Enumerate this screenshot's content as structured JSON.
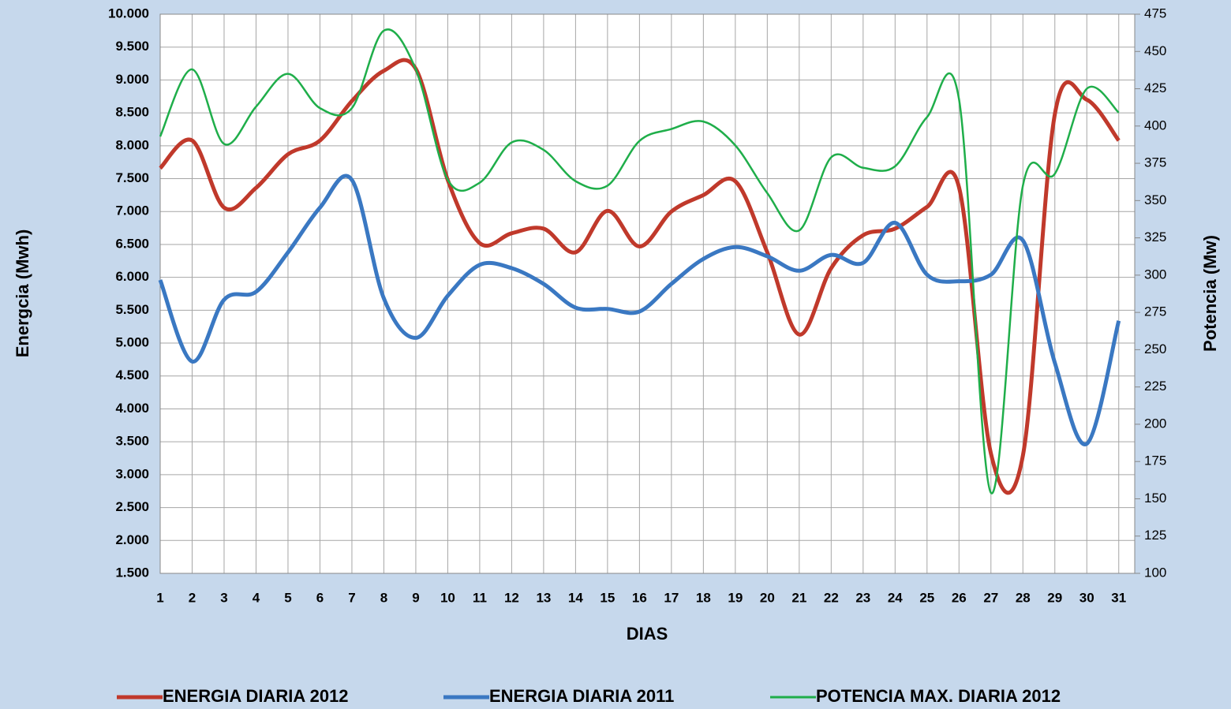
{
  "chart_data": {
    "type": "line",
    "x_label": "DIAS",
    "y_label": "Energcia (Mwh)",
    "y2_label": "Potencia (Mw)",
    "x": [
      1,
      2,
      3,
      4,
      5,
      6,
      7,
      8,
      9,
      10,
      11,
      12,
      13,
      14,
      15,
      16,
      17,
      18,
      19,
      20,
      21,
      22,
      23,
      24,
      25,
      26,
      27,
      28,
      29,
      30,
      31
    ],
    "xlim": [
      1,
      31.5
    ],
    "xticks": [
      1,
      2,
      3,
      4,
      5,
      6,
      7,
      8,
      9,
      10,
      11,
      12,
      13,
      14,
      15,
      16,
      17,
      18,
      19,
      20,
      21,
      22,
      23,
      24,
      25,
      26,
      27,
      28,
      29,
      30,
      31
    ],
    "ylim": [
      1500,
      10000
    ],
    "yticks": [
      {
        "value": 1500,
        "label": "1.500"
      },
      {
        "value": 2000,
        "label": "2.000"
      },
      {
        "value": 2500,
        "label": "2.500"
      },
      {
        "value": 3000,
        "label": "3.000"
      },
      {
        "value": 3500,
        "label": "3.500"
      },
      {
        "value": 4000,
        "label": "4.000"
      },
      {
        "value": 4500,
        "label": "4.500"
      },
      {
        "value": 5000,
        "label": "5.000"
      },
      {
        "value": 5500,
        "label": "5.500"
      },
      {
        "value": 6000,
        "label": "6.000"
      },
      {
        "value": 6500,
        "label": "6.500"
      },
      {
        "value": 7000,
        "label": "7.000"
      },
      {
        "value": 7500,
        "label": "7.500"
      },
      {
        "value": 8000,
        "label": "8.000"
      },
      {
        "value": 8500,
        "label": "8.500"
      },
      {
        "value": 9000,
        "label": "9.000"
      },
      {
        "value": 9500,
        "label": "9.500"
      },
      {
        "value": 10000,
        "label": "10.000"
      }
    ],
    "y2lim": [
      100,
      475
    ],
    "y2ticks": [
      100,
      125,
      150,
      175,
      200,
      225,
      250,
      275,
      300,
      325,
      350,
      375,
      400,
      425,
      450,
      475
    ],
    "grid": true,
    "legend": "bottom",
    "series": [
      {
        "name": "ENERGIA DIARIA 2012",
        "color": "#c0392b",
        "values": [
          7660,
          8080,
          7060,
          7360,
          7870,
          8080,
          8680,
          9140,
          9170,
          7480,
          6520,
          6670,
          6740,
          6380,
          7010,
          6470,
          7000,
          7250,
          7460,
          6380,
          5130,
          6140,
          6640,
          6740,
          7070,
          7370,
          3320,
          3290,
          8480,
          8700,
          8080
        ]
      },
      {
        "name": "ENERGIA DIARIA 2011",
        "color": "#3a78c2",
        "values": [
          5960,
          4720,
          5660,
          5780,
          6380,
          7060,
          7480,
          5680,
          5080,
          5720,
          6190,
          6140,
          5900,
          5540,
          5520,
          5480,
          5900,
          6280,
          6460,
          6320,
          6100,
          6340,
          6220,
          6830,
          6040,
          5940,
          6040,
          6560,
          4700,
          3470,
          5340
        ]
      },
      {
        "name": "POTENCIA MAX. DIARIA 2012",
        "color": "#1fae4a",
        "axis": "y2",
        "values": [
          393,
          438,
          388,
          413,
          435,
          412,
          412,
          464,
          438,
          364,
          362,
          389,
          384,
          363,
          360,
          390,
          398,
          403,
          387,
          355,
          330,
          379,
          372,
          373,
          406,
          418,
          154,
          360,
          368,
          425,
          409
        ]
      }
    ]
  }
}
